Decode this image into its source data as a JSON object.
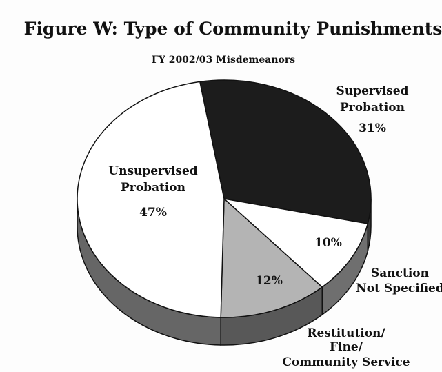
{
  "chart_data": {
    "type": "pie",
    "title": "Figure W:  Type of Community Punishments",
    "subtitle": "FY 2002/03 Misdemeanors",
    "slices": [
      {
        "category": "Supervised Probation",
        "lines": [
          "Supervised",
          "Probation"
        ],
        "value": 31,
        "value_label": "31%",
        "color": "#1c1c1c",
        "side_color": "#3a3a3a"
      },
      {
        "category": "Sanction Not Specified",
        "lines": [
          "Sanction",
          "Not Specified"
        ],
        "value": 10,
        "value_label": "10%",
        "color": "#ffffff",
        "side_color": "#6f6f6f"
      },
      {
        "category": "Restitution/ Fine/ Community Service",
        "lines": [
          "Restitution/",
          "Fine/",
          "Community Service"
        ],
        "value": 12,
        "value_label": "12%",
        "color": "#b4b4b4",
        "side_color": "#585858"
      },
      {
        "category": "Unsupervised Probation",
        "lines": [
          "Unsupervised",
          "Probation"
        ],
        "value": 47,
        "value_label": "47%",
        "color": "#ffffff",
        "side_color": "#666666"
      }
    ]
  }
}
